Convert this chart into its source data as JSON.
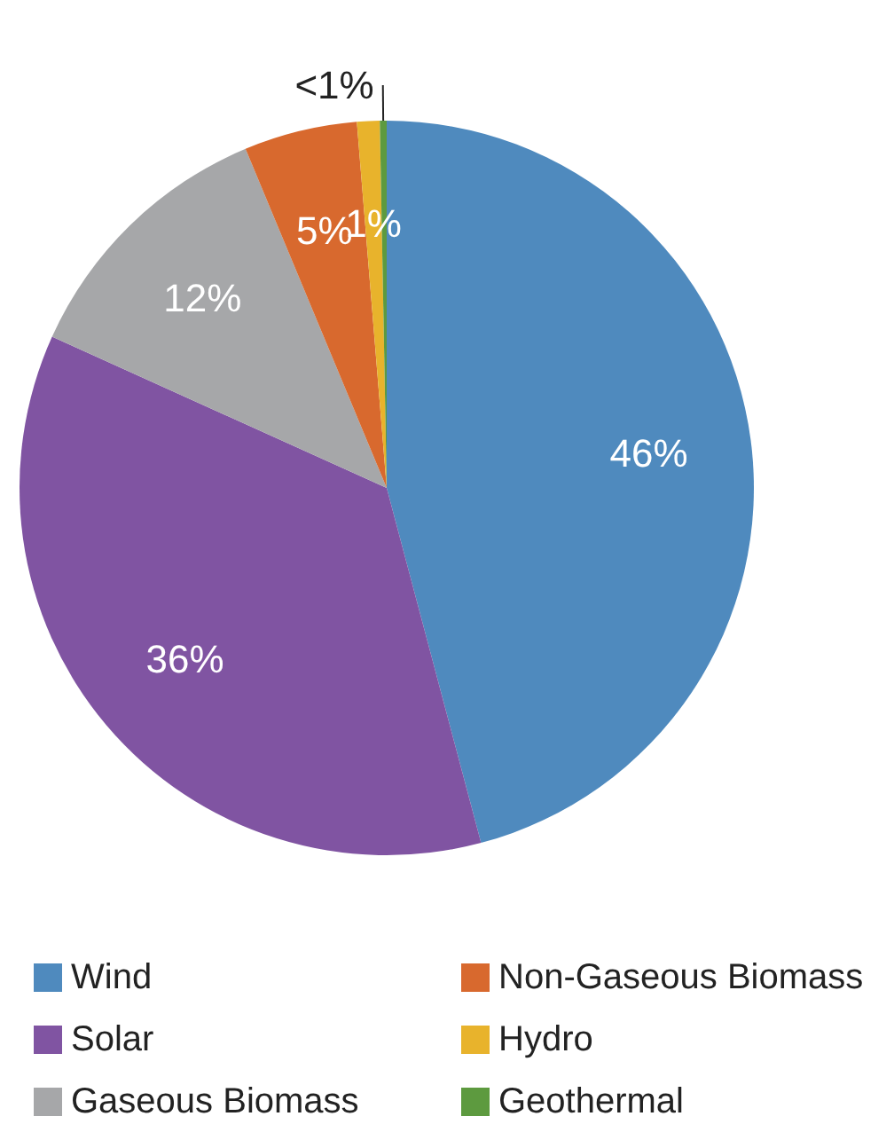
{
  "chart_data": {
    "type": "pie",
    "categories": [
      "Wind",
      "Solar",
      "Gaseous Biomass",
      "Non-Gaseous Biomass",
      "Hydro",
      "Geothermal"
    ],
    "values": [
      46,
      36,
      12,
      5,
      1,
      0.3
    ],
    "value_labels": [
      "46%",
      "36%",
      "12%",
      "5%",
      "1%",
      "<1%"
    ],
    "colors": [
      "#4f8abe",
      "#8054a2",
      "#a6a7a9",
      "#d8692e",
      "#e8b32c",
      "#5d9a3f"
    ],
    "legend": "bottom"
  }
}
